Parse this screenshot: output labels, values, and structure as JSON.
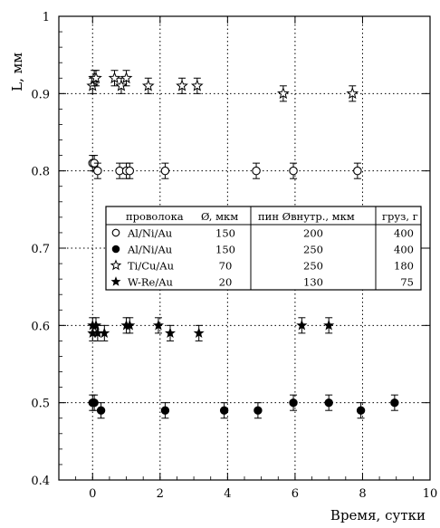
{
  "chart_data": {
    "type": "scatter",
    "xlabel": "Время, сутки",
    "ylabel": "L, мм",
    "xlim": [
      -1,
      10
    ],
    "ylim": [
      0.4,
      1.0
    ],
    "x_ticks": [
      "0",
      "2",
      "4",
      "6",
      "8",
      "10"
    ],
    "y_ticks": [
      "0.4",
      "0.5",
      "0.6",
      "0.7",
      "0.8",
      "0.9",
      "1"
    ],
    "grid": "dotted, at major ticks",
    "error_bar": 0.01,
    "series": [
      {
        "name": "Al/Ni/Au",
        "marker": "open-circle",
        "points": [
          [
            0.0,
            0.81
          ],
          [
            0.05,
            0.81
          ],
          [
            0.15,
            0.8
          ],
          [
            0.8,
            0.8
          ],
          [
            1.0,
            0.8
          ],
          [
            1.1,
            0.8
          ],
          [
            2.15,
            0.8
          ],
          [
            4.85,
            0.8
          ],
          [
            5.95,
            0.8
          ],
          [
            7.85,
            0.8
          ]
        ]
      },
      {
        "name": "Al/Ni/Au",
        "marker": "filled-circle",
        "points": [
          [
            0.0,
            0.5
          ],
          [
            0.05,
            0.5
          ],
          [
            0.25,
            0.49
          ],
          [
            2.15,
            0.49
          ],
          [
            3.9,
            0.49
          ],
          [
            4.9,
            0.49
          ],
          [
            5.95,
            0.5
          ],
          [
            7.0,
            0.5
          ],
          [
            7.95,
            0.49
          ],
          [
            8.95,
            0.5
          ]
        ]
      },
      {
        "name": "Ti/Cu/Au",
        "marker": "open-star",
        "points": [
          [
            0.0,
            0.91
          ],
          [
            0.05,
            0.92
          ],
          [
            0.1,
            0.92
          ],
          [
            0.65,
            0.92
          ],
          [
            0.85,
            0.91
          ],
          [
            1.0,
            0.92
          ],
          [
            1.65,
            0.91
          ],
          [
            2.65,
            0.91
          ],
          [
            3.1,
            0.91
          ],
          [
            5.65,
            0.9
          ],
          [
            7.7,
            0.9
          ]
        ]
      },
      {
        "name": "W-Re/Au",
        "marker": "filled-star",
        "points": [
          [
            0.0,
            0.6
          ],
          [
            0.0,
            0.59
          ],
          [
            0.1,
            0.6
          ],
          [
            0.15,
            0.59
          ],
          [
            0.35,
            0.59
          ],
          [
            1.0,
            0.6
          ],
          [
            1.1,
            0.6
          ],
          [
            1.95,
            0.6
          ],
          [
            2.3,
            0.59
          ],
          [
            3.15,
            0.59
          ],
          [
            6.2,
            0.6
          ],
          [
            7.0,
            0.6
          ]
        ]
      }
    ],
    "legend": {
      "placement": "center",
      "headers": [
        "проволока",
        "Ø, мкм",
        "пин Øвнутр., мкм",
        "груз, г"
      ],
      "rows": [
        {
          "marker": "open-circle",
          "wire": "Al/Ni/Au",
          "diameter": "150",
          "pin": "200",
          "load": "400"
        },
        {
          "marker": "filled-circle",
          "wire": "Al/Ni/Au",
          "diameter": "150",
          "pin": "250",
          "load": "400"
        },
        {
          "marker": "open-star",
          "wire": "Ti/Cu/Au",
          "diameter": "70",
          "pin": "250",
          "load": "180"
        },
        {
          "marker": "filled-star",
          "wire": "W-Re/Au",
          "diameter": "20",
          "pin": "130",
          "load": "75"
        }
      ]
    }
  }
}
